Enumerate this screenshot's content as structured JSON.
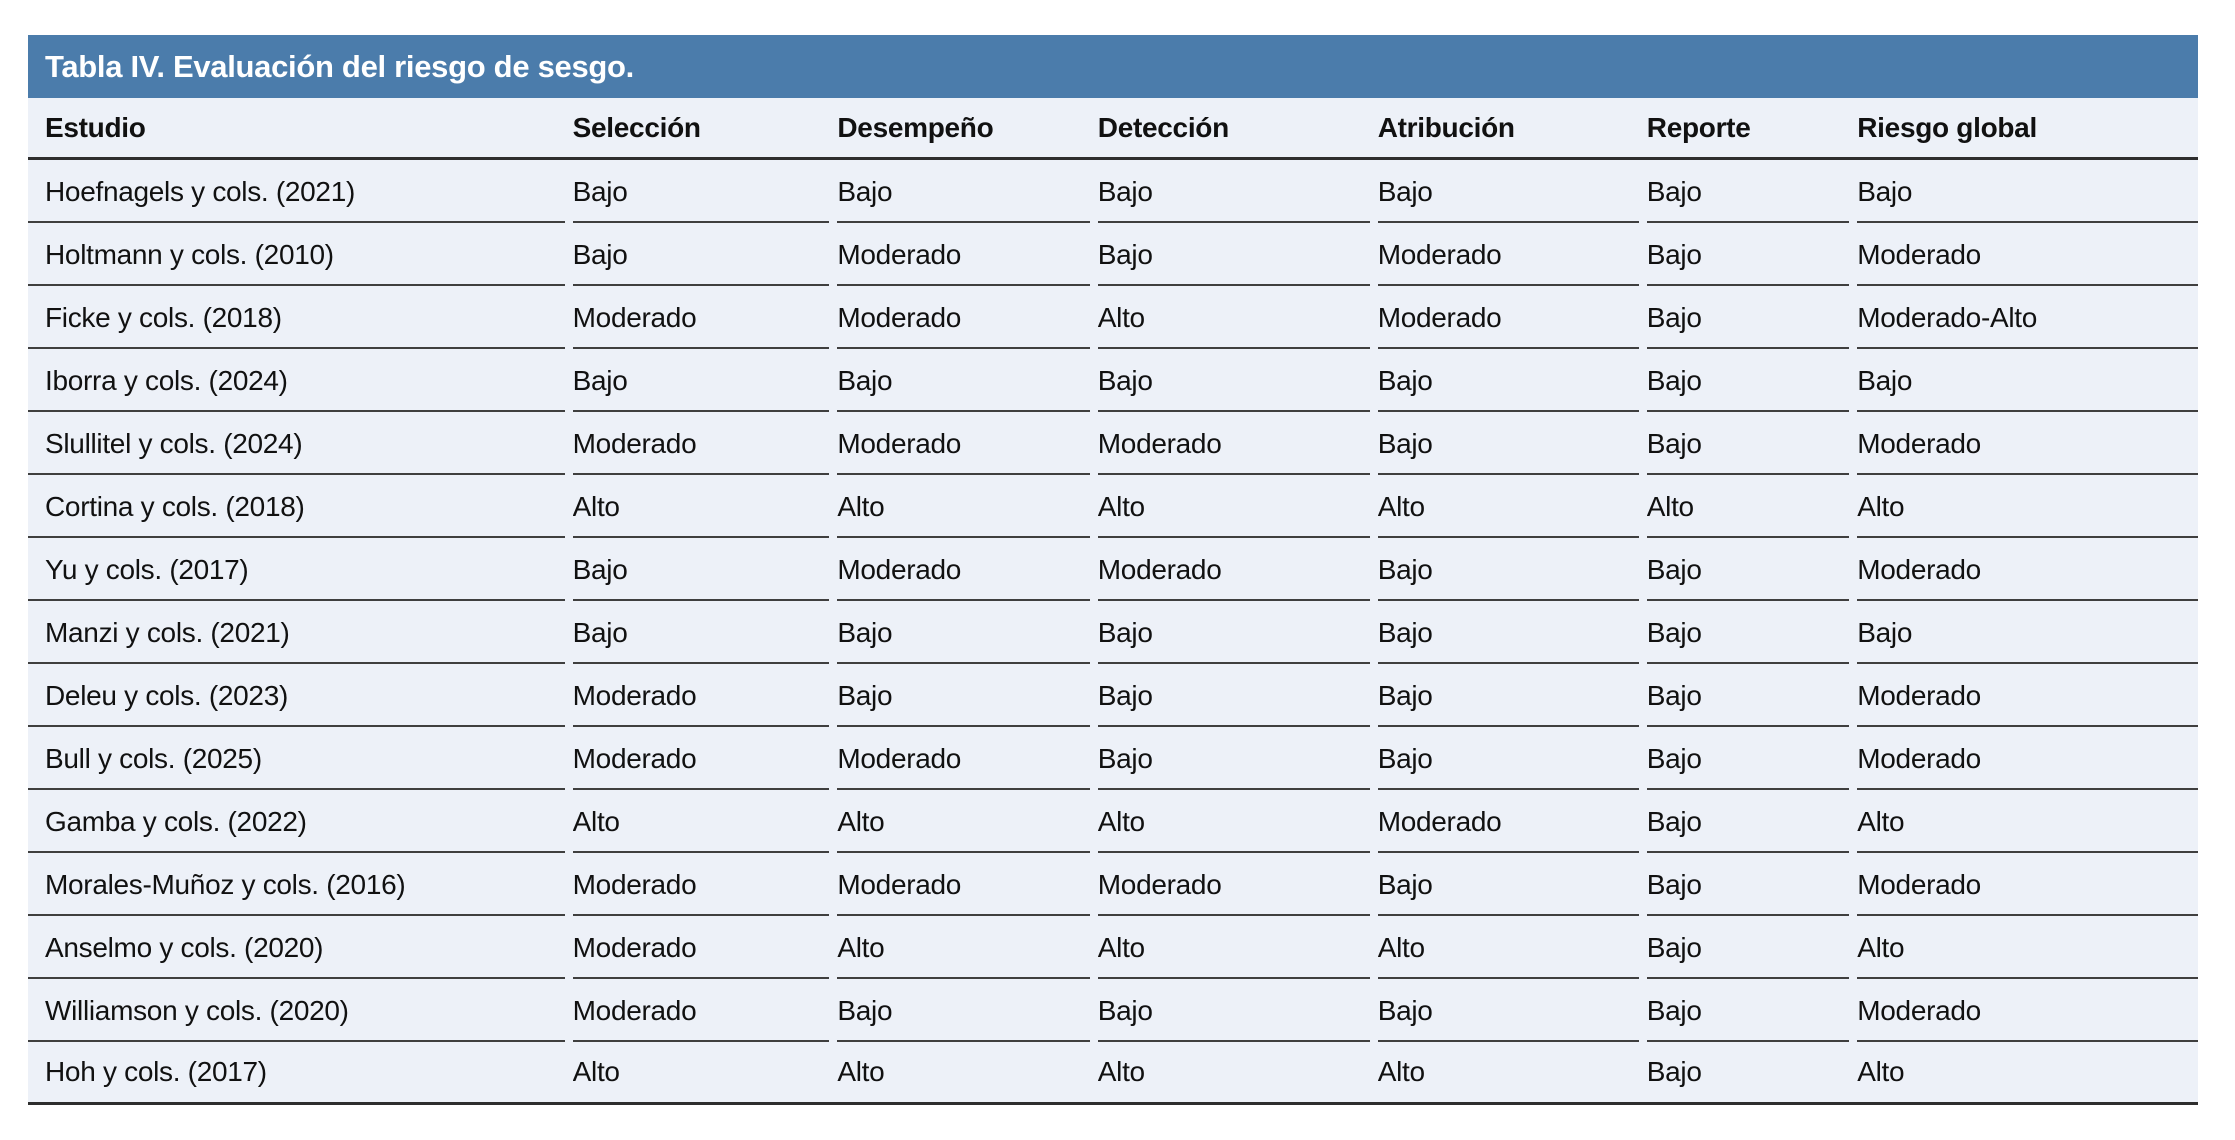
{
  "table": {
    "title": "Tabla IV. Evaluación del riesgo de sesgo.",
    "columns": [
      "Estudio",
      "Selección",
      "Desempeño",
      "Detección",
      "Atribución",
      "Reporte",
      "Riesgo global"
    ],
    "rows": [
      [
        "Hoefnagels y cols. (2021)",
        "Bajo",
        "Bajo",
        "Bajo",
        "Bajo",
        "Bajo",
        "Bajo"
      ],
      [
        "Holtmann y cols. (2010)",
        "Bajo",
        "Moderado",
        "Bajo",
        "Moderado",
        "Bajo",
        "Moderado"
      ],
      [
        "Ficke y cols. (2018)",
        "Moderado",
        "Moderado",
        "Alto",
        "Moderado",
        "Bajo",
        "Moderado-Alto"
      ],
      [
        "Iborra y cols. (2024)",
        "Bajo",
        "Bajo",
        "Bajo",
        "Bajo",
        "Bajo",
        "Bajo"
      ],
      [
        "Slullitel y cols. (2024)",
        "Moderado",
        "Moderado",
        "Moderado",
        "Bajo",
        "Bajo",
        "Moderado"
      ],
      [
        "Cortina y cols. (2018)",
        "Alto",
        "Alto",
        "Alto",
        "Alto",
        "Alto",
        "Alto"
      ],
      [
        "Yu y cols. (2017)",
        "Bajo",
        "Moderado",
        "Moderado",
        "Bajo",
        "Bajo",
        "Moderado"
      ],
      [
        "Manzi y cols. (2021)",
        "Bajo",
        "Bajo",
        "Bajo",
        "Bajo",
        "Bajo",
        "Bajo"
      ],
      [
        "Deleu y cols. (2023)",
        "Moderado",
        "Bajo",
        "Bajo",
        "Bajo",
        "Bajo",
        "Moderado"
      ],
      [
        "Bull y cols. (2025)",
        "Moderado",
        "Moderado",
        "Bajo",
        "Bajo",
        "Bajo",
        "Moderado"
      ],
      [
        "Gamba y cols. (2022)",
        "Alto",
        "Alto",
        "Alto",
        "Moderado",
        "Bajo",
        "Alto"
      ],
      [
        "Morales-Muñoz y cols. (2016)",
        "Moderado",
        "Moderado",
        "Moderado",
        "Bajo",
        "Bajo",
        "Moderado"
      ],
      [
        "Anselmo y cols. (2020)",
        "Moderado",
        "Alto",
        "Alto",
        "Alto",
        "Bajo",
        "Alto"
      ],
      [
        "Williamson y cols. (2020)",
        "Moderado",
        "Bajo",
        "Bajo",
        "Bajo",
        "Bajo",
        "Moderado"
      ],
      [
        "Hoh y cols. (2017)",
        "Alto",
        "Alto",
        "Alto",
        "Alto",
        "Bajo",
        "Alto"
      ]
    ]
  },
  "colors": {
    "title_bar": "#4b7cab",
    "row_background": "#edf1f8",
    "divider": "#3f3f3f",
    "heavy_divider": "#2e2e2e",
    "text": "#111111",
    "title_text": "#ffffff"
  }
}
